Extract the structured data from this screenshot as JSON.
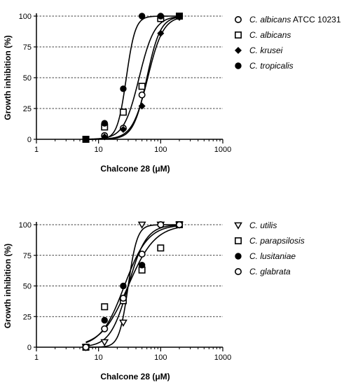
{
  "chart_data": [
    {
      "type": "scatter",
      "title": "",
      "xlabel": "Chalcone 28 (μM)",
      "ylabel": "Growth inhibition (%)",
      "xscale": "log",
      "xlim": [
        1,
        1000
      ],
      "ylim": [
        0,
        100
      ],
      "xticks": [
        "1",
        "10",
        "100",
        "1000"
      ],
      "yticks": [
        "0",
        "25",
        "50",
        "75",
        "100"
      ],
      "grid": "horizontal dashed",
      "legend_position": "right",
      "series": [
        {
          "name_italic": "C. albicans",
          "name_suffix": " ATCC 10231",
          "marker": "circle-open",
          "x": [
            6.25,
            12.5,
            25,
            50,
            100,
            200
          ],
          "y": [
            0,
            3,
            9,
            36,
            98,
            100
          ],
          "fit": {
            "ec50": 60,
            "hill": 4
          }
        },
        {
          "name_italic": "C. albicans",
          "name_suffix": "",
          "marker": "square-open",
          "x": [
            6.25,
            12.5,
            25,
            50,
            100,
            200
          ],
          "y": [
            0,
            10,
            22,
            43,
            98,
            100
          ],
          "fit": {
            "ec50": 45,
            "hill": 3.5
          }
        },
        {
          "name_italic": "C. krusei",
          "name_suffix": "",
          "marker": "diamond-filled",
          "x": [
            6.25,
            12.5,
            25,
            50,
            100,
            200
          ],
          "y": [
            0,
            2,
            8,
            27,
            86,
            99
          ],
          "fit": {
            "ec50": 62,
            "hill": 3.5
          }
        },
        {
          "name_italic": "C. tropicalis",
          "name_suffix": "",
          "marker": "circle-filled",
          "x": [
            6.25,
            12.5,
            25,
            50,
            100,
            200
          ],
          "y": [
            0,
            13,
            41,
            100,
            100,
            100
          ],
          "fit": {
            "ec50": 28,
            "hill": 6
          }
        }
      ]
    },
    {
      "type": "scatter",
      "title": "",
      "xlabel": "Chalcone 28 (μM)",
      "ylabel": "Growth inhibition (%)",
      "xscale": "log",
      "xlim": [
        1,
        1000
      ],
      "ylim": [
        0,
        100
      ],
      "xticks": [
        "1",
        "10",
        "100",
        "1000"
      ],
      "yticks": [
        "0",
        "25",
        "50",
        "75",
        "100"
      ],
      "grid": "horizontal dashed",
      "legend_position": "right",
      "series": [
        {
          "name_italic": "C. utilis",
          "name_suffix": "",
          "marker": "triangle-down-open",
          "x": [
            6.25,
            12.5,
            25,
            50,
            100,
            200
          ],
          "y": [
            0,
            4,
            20,
            100,
            100,
            100
          ],
          "fit": {
            "ec50": 30,
            "hill": 6
          }
        },
        {
          "name_italic": "C. parapsilosis",
          "name_suffix": "",
          "marker": "square-open",
          "x": [
            6.25,
            12.5,
            25,
            50,
            100,
            200
          ],
          "y": [
            0,
            33,
            38,
            63,
            81,
            100
          ],
          "fit": {
            "ec50": 30,
            "hill": 2
          }
        },
        {
          "name_italic": "C. lusitaniae",
          "name_suffix": "",
          "marker": "circle-filled",
          "x": [
            6.25,
            12.5,
            25,
            50,
            100,
            200
          ],
          "y": [
            0,
            22,
            50,
            67,
            100,
            100
          ],
          "fit": {
            "ec50": 26,
            "hill": 2.3
          }
        },
        {
          "name_italic": "C. glabrata",
          "name_suffix": "",
          "marker": "circle-open",
          "x": [
            6.25,
            12.5,
            25,
            50,
            100,
            200
          ],
          "y": [
            0,
            15,
            40,
            76,
            100,
            100
          ],
          "fit": {
            "ec50": 30,
            "hill": 3
          }
        }
      ]
    }
  ]
}
